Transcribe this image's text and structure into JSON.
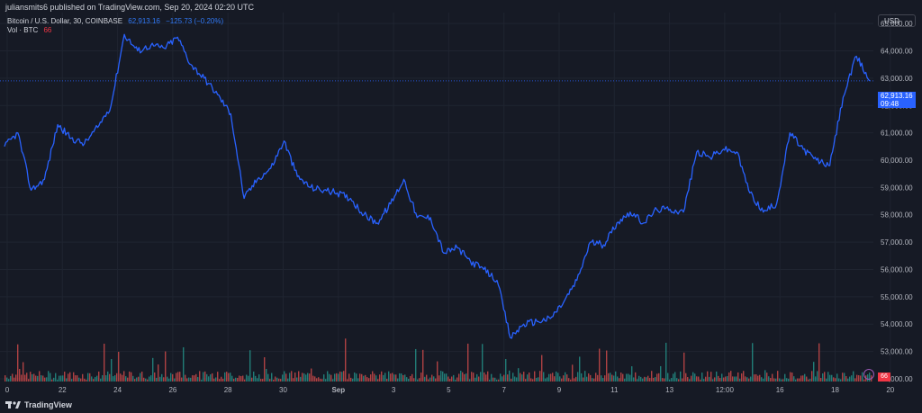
{
  "header": {
    "publisher": "juliansmits6 published on TradingView.com, Sep 20, 2024 02:20 UTC",
    "symbol": "Bitcoin / U.S. Dollar, 30, COINBASE",
    "last_price": "62,913.16",
    "change": "−125.73 (−0.20%)",
    "volume_label": "Vol · BTC",
    "volume_value": "66"
  },
  "currency_button": "USD",
  "price_tag": {
    "price": "62,913.16",
    "countdown": "09:48"
  },
  "volume_tag": "66",
  "footer": {
    "brand": "TradingView"
  },
  "colors": {
    "line": "#2962ff",
    "up_volume": "#26a69a",
    "down_volume": "#ef5350",
    "background": "#161a25",
    "grid": "#1f2430"
  },
  "chart_data": {
    "type": "line",
    "title": "",
    "xlabel": "",
    "ylabel": "",
    "ylim": [
      51900,
      65400
    ],
    "y_ticks": [
      "65,000.00",
      "64,000.00",
      "63,000.00",
      "62,000.00",
      "61,000.00",
      "60,000.00",
      "59,000.00",
      "58,000.00",
      "57,000.00",
      "56,000.00",
      "55,000.00",
      "54,000.00",
      "53,000.00",
      "52,000.00"
    ],
    "x_ticks": [
      "0",
      "22",
      "24",
      "26",
      "28",
      "30",
      "Sep",
      "3",
      "5",
      "7",
      "9",
      "11",
      "13",
      "12:00",
      "16",
      "18",
      "20"
    ],
    "series": [
      {
        "x": [
          "Aug 20",
          "Aug 20 12:00",
          "Aug 21",
          "Aug 21 12:00",
          "Aug 22",
          "Aug 22 12:00",
          "Aug 23",
          "Aug 23 08:00",
          "Aug 23 12:00",
          "Aug 24",
          "Aug 24 12:00",
          "Aug 25",
          "Aug 25 12:00",
          "Aug 26",
          "Aug 26 12:00",
          "Aug 27",
          "Aug 27 08:00",
          "Aug 27 12:00",
          "Aug 28",
          "Aug 28 12:00",
          "Aug 29",
          "Aug 29 12:00",
          "Aug 30",
          "Aug 30 12:00",
          "Aug 31",
          "Aug 31 12:00",
          "Sep 1",
          "Sep 1 12:00",
          "Sep 2",
          "Sep 2 12:00",
          "Sep 3",
          "Sep 3 12:00",
          "Sep 4",
          "Sep 4 12:00",
          "Sep 5",
          "Sep 5 12:00",
          "Sep 6",
          "Sep 6 12:00",
          "Sep 6 18:00",
          "Sep 7",
          "Sep 7 12:00",
          "Sep 8",
          "Sep 8 12:00",
          "Sep 9",
          "Sep 9 12:00",
          "Sep 10",
          "Sep 10 12:00",
          "Sep 11",
          "Sep 11 12:00",
          "Sep 12",
          "Sep 12 12:00",
          "Sep 13",
          "Sep 13 12:00",
          "Sep 14",
          "Sep 14 12:00",
          "Sep 15",
          "Sep 15 12:00",
          "Sep 16",
          "Sep 16 12:00",
          "Sep 17",
          "Sep 17 12:00",
          "Sep 18",
          "Sep 18 12:00",
          "Sep 19",
          "Sep 19 12:00",
          "Sep 20"
        ],
        "values": [
          60500,
          61000,
          58900,
          59300,
          61300,
          60800,
          60600,
          61200,
          62000,
          64600,
          64000,
          64200,
          64100,
          64500,
          63500,
          63000,
          62400,
          61700,
          58600,
          59300,
          59700,
          60700,
          59400,
          59000,
          58900,
          58800,
          58600,
          58000,
          57700,
          58400,
          59300,
          57900,
          57900,
          56600,
          56800,
          56300,
          56000,
          55600,
          53500,
          54000,
          54100,
          54200,
          54800,
          55600,
          57000,
          56900,
          57700,
          58100,
          57700,
          58200,
          58200,
          58100,
          60300,
          60100,
          60400,
          60300,
          58800,
          58100,
          58400,
          61000,
          60400,
          60000,
          59800,
          62300,
          63800,
          62900
        ]
      }
    ]
  }
}
